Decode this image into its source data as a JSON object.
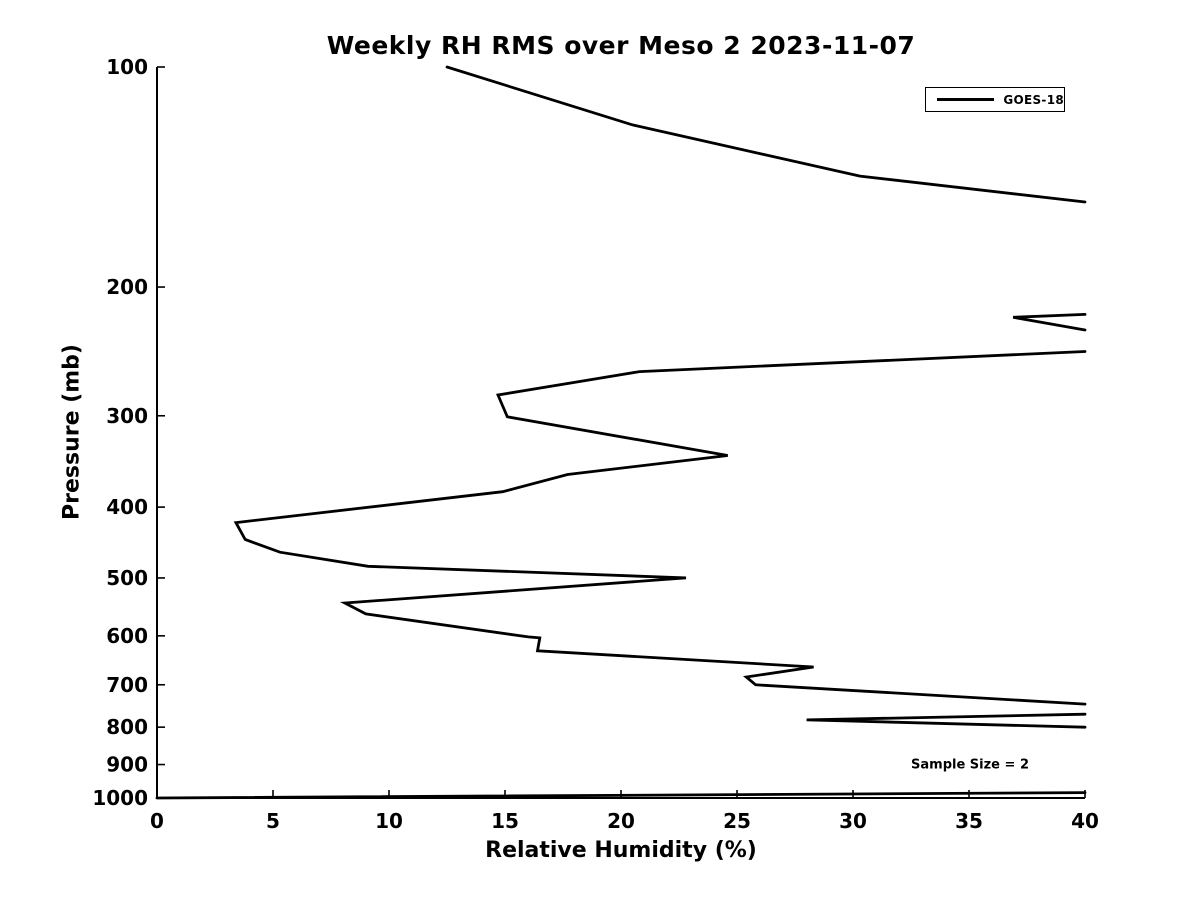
{
  "chart_data": {
    "type": "line",
    "title": "Weekly RH RMS over Meso 2 2023-11-07",
    "xlabel": "Relative Humidity (%)",
    "ylabel": "Pressure (mb)",
    "xlim": [
      0,
      40
    ],
    "plim": [
      100,
      1000
    ],
    "y_scale": "log-inverted-pressure",
    "grid": false,
    "x_ticks": [
      0,
      5,
      10,
      15,
      20,
      25,
      30,
      35,
      40
    ],
    "y_ticks": [
      100,
      200,
      300,
      400,
      500,
      600,
      700,
      800,
      900,
      1000
    ],
    "legend": {
      "label": "GOES-18",
      "position": "top-right"
    },
    "annotation": "Sample Size = 2",
    "line_color": "#000000",
    "background_color": "#ffffff",
    "series": [
      {
        "name": "GOES-18",
        "note": "single black RH-RMS profile; segments clipped at RH=40 (right edge); points are [RH_percent, pressure_mb]",
        "segments": [
          [
            [
              12.5,
              100
            ],
            [
              20.5,
              120
            ],
            [
              30.3,
              141
            ],
            [
              40,
              153
            ]
          ],
          [
            [
              40,
              218
            ],
            [
              36.9,
              220
            ],
            [
              40,
              229
            ]
          ],
          [
            [
              40,
              245
            ],
            [
              20.8,
              261
            ],
            [
              14.7,
              281
            ],
            [
              15.1,
              301
            ],
            [
              24.6,
              340
            ],
            [
              17.7,
              361
            ],
            [
              14.9,
              381
            ],
            [
              3.4,
              420
            ],
            [
              3.8,
              443
            ],
            [
              5.3,
              461
            ],
            [
              9.1,
              482
            ],
            [
              22.8,
              500
            ],
            [
              8.1,
              541
            ],
            [
              9.0,
              560
            ],
            [
              16.0,
              602
            ],
            [
              16.5,
              604
            ],
            [
              16.4,
              629
            ],
            [
              28.3,
              662
            ],
            [
              25.4,
              683
            ],
            [
              25.8,
              700
            ],
            [
              40,
              744
            ]
          ],
          [
            [
              40,
              768
            ],
            [
              28.0,
              782
            ],
            [
              40,
              800
            ]
          ],
          [
            [
              0,
              1000
            ],
            [
              40,
              983
            ]
          ]
        ]
      }
    ]
  }
}
